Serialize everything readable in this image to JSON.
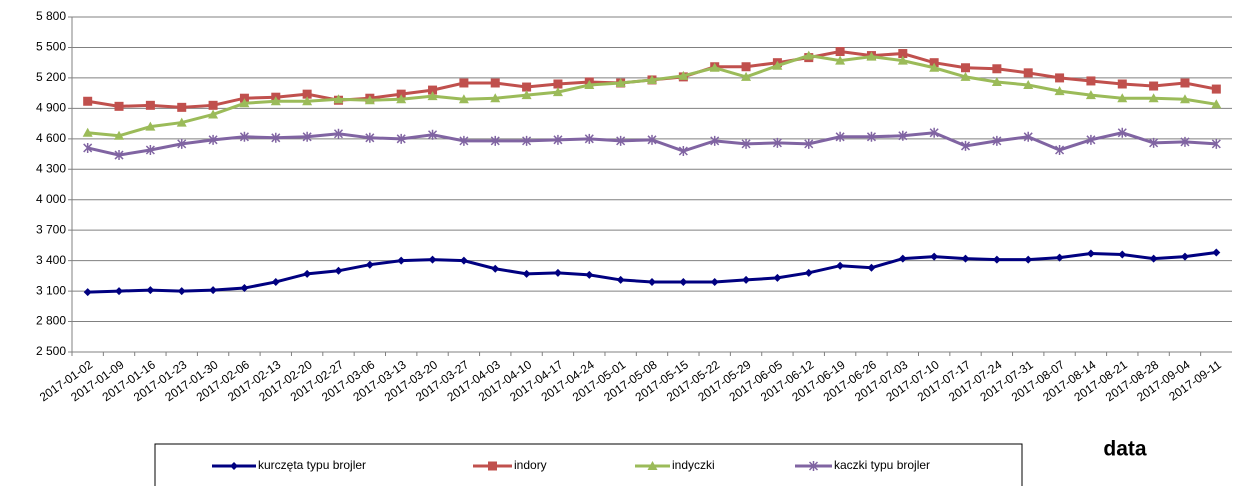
{
  "chart_data": {
    "type": "line",
    "x_label": "data",
    "categories": [
      "2017-01-02",
      "2017-01-09",
      "2017-01-16",
      "2017-01-23",
      "2017-01-30",
      "2017-02-06",
      "2017-02-13",
      "2017-02-20",
      "2017-02-27",
      "2017-03-06",
      "2017-03-13",
      "2017-03-20",
      "2017-03-27",
      "2017-04-03",
      "2017-04-10",
      "2017-04-17",
      "2017-04-24",
      "2017-05-01",
      "2017-05-08",
      "2017-05-15",
      "2017-05-22",
      "2017-05-29",
      "2017-06-05",
      "2017-06-12",
      "2017-06-19",
      "2017-06-26",
      "2017-07-03",
      "2017-07-10",
      "2017-07-17",
      "2017-07-24",
      "2017-07-31",
      "2017-08-07",
      "2017-08-14",
      "2017-08-21",
      "2017-08-28",
      "2017-09-04",
      "2017-09-11"
    ],
    "series": [
      {
        "name": "kurczęta typu brojler",
        "color": "#000080",
        "marker": "diamond",
        "values": [
          3090,
          3100,
          3110,
          3100,
          3110,
          3130,
          3190,
          3270,
          3300,
          3360,
          3400,
          3410,
          3400,
          3320,
          3270,
          3280,
          3260,
          3210,
          3190,
          3190,
          3190,
          3210,
          3230,
          3280,
          3350,
          3330,
          3420,
          3440,
          3420,
          3410,
          3410,
          3430,
          3470,
          3460,
          3420,
          3440,
          3480
        ]
      },
      {
        "name": "indory",
        "color": "#c0504d",
        "marker": "square",
        "values": [
          4970,
          4920,
          4930,
          4910,
          4930,
          5000,
          5010,
          5040,
          4980,
          5000,
          5040,
          5080,
          5150,
          5150,
          5110,
          5140,
          5160,
          5150,
          5180,
          5210,
          5310,
          5310,
          5350,
          5400,
          5460,
          5420,
          5440,
          5350,
          5300,
          5290,
          5250,
          5200,
          5170,
          5140,
          5120,
          5150,
          5090
        ]
      },
      {
        "name": "indyczki",
        "color": "#9bbb59",
        "marker": "triangle",
        "values": [
          4660,
          4630,
          4720,
          4760,
          4840,
          4950,
          4970,
          4970,
          4990,
          4980,
          4990,
          5020,
          4990,
          5000,
          5030,
          5060,
          5130,
          5150,
          5180,
          5220,
          5300,
          5210,
          5320,
          5420,
          5370,
          5410,
          5370,
          5300,
          5210,
          5160,
          5130,
          5070,
          5030,
          5000,
          5000,
          4990,
          4940
        ]
      },
      {
        "name": "kaczki typu brojler",
        "color": "#8064a2",
        "marker": "x",
        "values": [
          4510,
          4440,
          4490,
          4550,
          4590,
          4620,
          4610,
          4620,
          4650,
          4610,
          4600,
          4640,
          4580,
          4580,
          4580,
          4590,
          4600,
          4580,
          4590,
          4480,
          4580,
          4550,
          4560,
          4550,
          4620,
          4620,
          4630,
          4660,
          4530,
          4580,
          4620,
          4490,
          4590,
          4660,
          4560,
          4570,
          4550
        ]
      }
    ],
    "ylim": [
      2500,
      5800
    ],
    "yticks": [
      {
        "value": 2500,
        "label": "2 500"
      },
      {
        "value": 2800,
        "label": "2 800"
      },
      {
        "value": 3100,
        "label": "3 100"
      },
      {
        "value": 3400,
        "label": "3 400"
      },
      {
        "value": 3700,
        "label": "3 700"
      },
      {
        "value": 4000,
        "label": "4 000"
      },
      {
        "value": 4300,
        "label": "4 300"
      },
      {
        "value": 4600,
        "label": "4 600"
      },
      {
        "value": 4900,
        "label": "4 900"
      },
      {
        "value": 5200,
        "label": "5 200"
      },
      {
        "value": 5500,
        "label": "5 500"
      },
      {
        "value": 5800,
        "label": "5 800"
      }
    ],
    "grid": true
  }
}
